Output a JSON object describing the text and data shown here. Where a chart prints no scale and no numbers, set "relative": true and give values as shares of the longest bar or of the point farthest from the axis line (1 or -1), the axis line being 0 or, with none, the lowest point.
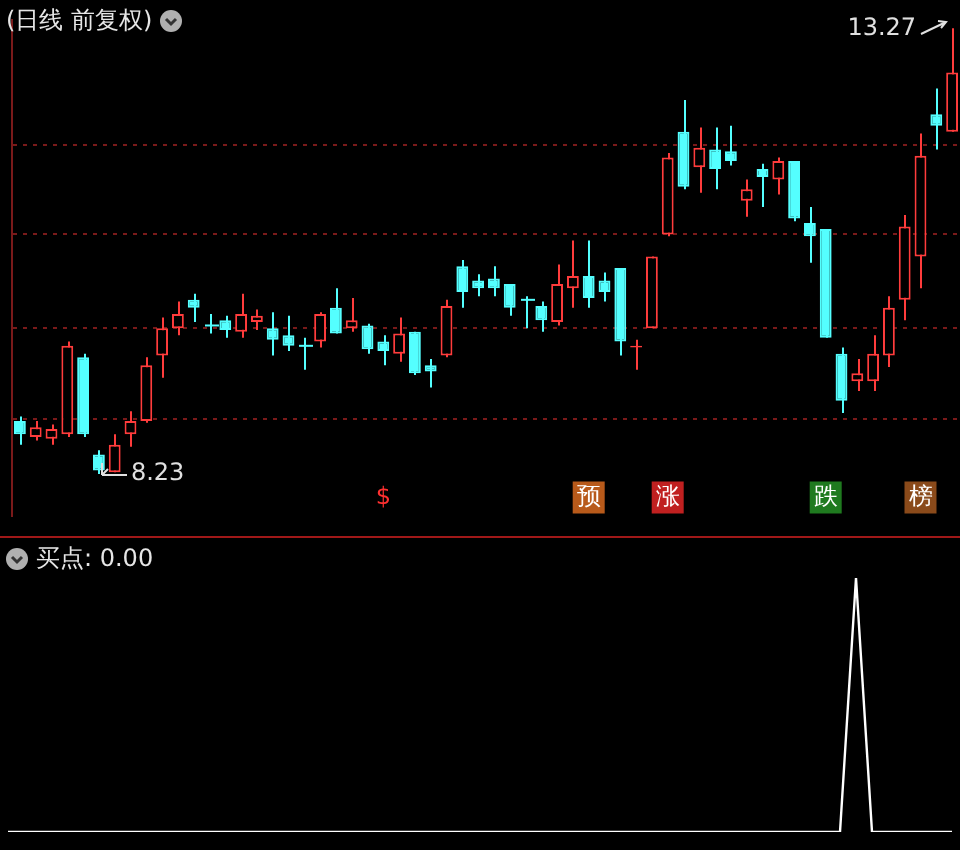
{
  "chart_data": [
    {
      "type": "candlestick",
      "title": "(日线 前复权)",
      "categories": [
        null,
        null,
        null,
        null,
        null,
        null,
        null,
        null,
        null,
        null,
        null,
        null,
        null,
        null,
        null,
        null,
        null,
        null,
        null,
        null,
        null,
        null,
        null,
        null,
        null,
        null,
        null,
        null,
        null,
        null,
        null,
        null,
        null,
        null,
        null,
        null,
        null,
        null,
        null,
        null,
        null,
        null,
        null,
        null,
        null,
        null,
        null,
        null,
        null,
        null,
        null,
        null,
        null,
        null,
        null,
        null,
        null,
        null,
        null,
        null
      ],
      "ohlc": [
        [
          8.83,
          8.88,
          8.56,
          8.68
        ],
        [
          8.65,
          8.83,
          8.61,
          8.76
        ],
        [
          8.63,
          8.79,
          8.56,
          8.74
        ],
        [
          8.68,
          9.73,
          8.65,
          9.68
        ],
        [
          9.55,
          9.59,
          8.65,
          8.68
        ],
        [
          8.45,
          8.5,
          8.23,
          8.27
        ],
        [
          8.25,
          8.68,
          8.25,
          8.56
        ],
        [
          8.68,
          8.94,
          8.54,
          8.83
        ],
        [
          8.83,
          9.55,
          8.81,
          9.46
        ],
        [
          9.57,
          10.0,
          9.32,
          9.88
        ],
        [
          9.88,
          10.18,
          9.8,
          10.04
        ],
        [
          10.2,
          10.27,
          9.95,
          10.11
        ],
        [
          9.91,
          10.04,
          9.82,
          9.91
        ],
        [
          9.97,
          10.02,
          9.77,
          9.86
        ],
        [
          9.84,
          10.27,
          9.77,
          10.04
        ],
        [
          9.95,
          10.09,
          9.86,
          10.02
        ],
        [
          9.88,
          10.06,
          9.57,
          9.75
        ],
        [
          9.8,
          10.02,
          9.62,
          9.68
        ],
        [
          9.68,
          9.77,
          9.41,
          9.68
        ],
        [
          9.73,
          10.06,
          9.66,
          10.04
        ],
        [
          10.11,
          10.33,
          9.82,
          9.82
        ],
        [
          9.88,
          10.22,
          9.84,
          9.97
        ],
        [
          9.91,
          9.93,
          9.59,
          9.64
        ],
        [
          9.73,
          9.8,
          9.46,
          9.62
        ],
        [
          9.59,
          10.0,
          9.5,
          9.82
        ],
        [
          9.84,
          9.84,
          9.35,
          9.37
        ],
        [
          9.46,
          9.53,
          9.21,
          9.39
        ],
        [
          9.57,
          10.2,
          9.55,
          10.13
        ],
        [
          10.58,
          10.65,
          10.11,
          10.29
        ],
        [
          10.42,
          10.49,
          10.24,
          10.33
        ],
        [
          10.44,
          10.58,
          10.24,
          10.33
        ],
        [
          10.38,
          10.38,
          10.02,
          10.11
        ],
        [
          10.2,
          10.24,
          9.88,
          10.2
        ],
        [
          10.13,
          10.18,
          9.84,
          9.97
        ],
        [
          9.95,
          10.6,
          9.91,
          10.38
        ],
        [
          10.33,
          10.87,
          10.11,
          10.47
        ],
        [
          10.47,
          10.87,
          10.11,
          10.22
        ],
        [
          10.42,
          10.51,
          10.18,
          10.29
        ],
        [
          10.56,
          10.56,
          9.57,
          9.73
        ],
        [
          9.66,
          9.75,
          9.41,
          9.68
        ],
        [
          9.88,
          10.69,
          9.88,
          10.69
        ],
        [
          10.94,
          11.86,
          10.92,
          11.81
        ],
        [
          12.1,
          12.46,
          11.45,
          11.48
        ],
        [
          11.7,
          12.15,
          11.41,
          11.92
        ],
        [
          11.9,
          12.15,
          11.45,
          11.68
        ],
        [
          11.88,
          12.17,
          11.72,
          11.77
        ],
        [
          11.32,
          11.56,
          11.14,
          11.45
        ],
        [
          11.68,
          11.74,
          11.25,
          11.59
        ],
        [
          11.56,
          11.81,
          11.39,
          11.77
        ],
        [
          11.77,
          11.77,
          11.09,
          11.12
        ],
        [
          11.07,
          11.25,
          10.62,
          10.92
        ],
        [
          11.0,
          11.0,
          9.77,
          9.77
        ],
        [
          9.59,
          9.66,
          8.92,
          9.06
        ],
        [
          9.28,
          9.53,
          9.17,
          9.37
        ],
        [
          9.28,
          9.8,
          9.17,
          9.59
        ],
        [
          9.57,
          10.24,
          9.44,
          10.11
        ],
        [
          10.2,
          11.16,
          9.97,
          11.03
        ],
        [
          10.69,
          12.08,
          10.33,
          11.83
        ],
        [
          12.3,
          12.59,
          11.9,
          12.17
        ],
        [
          12.1,
          13.27,
          12.1,
          12.77
        ]
      ],
      "colors": [
        "#54ffff",
        "#ff3c3c",
        "#ff3c3c",
        "#ff3c3c",
        "#54ffff",
        "#54ffff",
        "#ff3c3c",
        "#ff3c3c",
        "#ff3c3c",
        "#ff3c3c",
        "#ff3c3c",
        "#54ffff",
        "#54ffff",
        "#54ffff",
        "#ff3c3c",
        "#ff3c3c",
        "#54ffff",
        "#54ffff",
        "#54ffff",
        "#ff3c3c",
        "#54ffff",
        "#ff3c3c",
        "#54ffff",
        "#54ffff",
        "#ff3c3c",
        "#54ffff",
        "#54ffff",
        "#ff3c3c",
        "#54ffff",
        "#54ffff",
        "#54ffff",
        "#54ffff",
        "#54ffff",
        "#54ffff",
        "#ff3c3c",
        "#ff3c3c",
        "#54ffff",
        "#54ffff",
        "#54ffff",
        "#ff3c3c",
        "#ff3c3c",
        "#ff3c3c",
        "#54ffff",
        "#ff3c3c",
        "#54ffff",
        "#54ffff",
        "#ff3c3c",
        "#54ffff",
        "#ff3c3c",
        "#54ffff",
        "#54ffff",
        "#54ffff",
        "#54ffff",
        "#ff3c3c",
        "#ff3c3c",
        "#ff3c3c",
        "#ff3c3c",
        "#ff3c3c",
        "#54ffff",
        "#ff3c3c"
      ],
      "yticks": [
        {
          "value": 8.85,
          "label": null
        },
        {
          "value": 9.88,
          "label": null
        },
        {
          "value": 10.94,
          "label": null
        },
        {
          "value": 11.95,
          "label": null
        }
      ],
      "ylim": [
        7.76,
        13.36
      ],
      "grid": "y",
      "legend": false,
      "annotations": [
        "13.27",
        "8.23",
        "$",
        "预",
        "涨",
        "跌",
        "榜"
      ]
    },
    {
      "type": "line",
      "title": "买点: 0.00",
      "categories": [
        null,
        null,
        null,
        null,
        null,
        null,
        null,
        null,
        null,
        null,
        null,
        null,
        null,
        null,
        null,
        null,
        null,
        null,
        null,
        null,
        null,
        null,
        null,
        null,
        null,
        null,
        null,
        null,
        null,
        null,
        null,
        null,
        null,
        null,
        null,
        null,
        null,
        null,
        null,
        null,
        null,
        null,
        null,
        null,
        null,
        null,
        null,
        null,
        null,
        null,
        null,
        null,
        null,
        null,
        null,
        null,
        null,
        null,
        null,
        null
      ],
      "series": [
        {
          "color": "#ffffff",
          "values": [
            0,
            0,
            0,
            0,
            0,
            0,
            0,
            0,
            0,
            0,
            0,
            0,
            0,
            0,
            0,
            0,
            0,
            0,
            0,
            0,
            0,
            0,
            0,
            0,
            0,
            0,
            0,
            0,
            0,
            0,
            0,
            0,
            0,
            0,
            0,
            0,
            0,
            0,
            0,
            0,
            0,
            0,
            0,
            0,
            0,
            0,
            0,
            0,
            0,
            0,
            0,
            0,
            0,
            1,
            0,
            0,
            0,
            0,
            0,
            0
          ]
        }
      ],
      "relative": true,
      "legend": false,
      "marker": "none",
      "line_style": "solid"
    }
  ]
}
